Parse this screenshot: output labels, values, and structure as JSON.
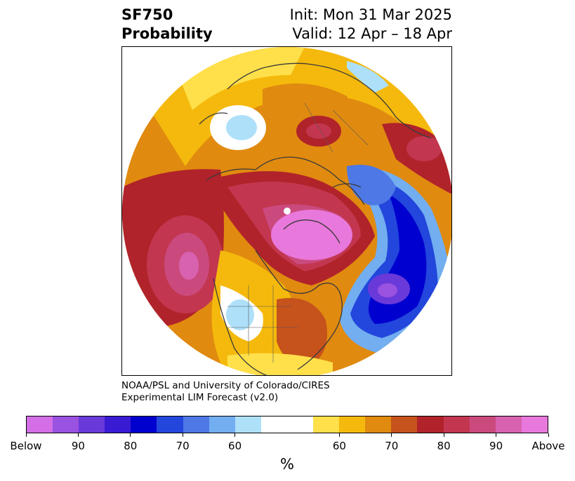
{
  "header": {
    "title_line1": "SF750",
    "title_line2": "Probability",
    "init": "Init: Mon 31 Mar 2025",
    "valid": "Valid: 12 Apr – 18 Apr"
  },
  "credit": {
    "line1": "NOAA/PSL and University of Colorado/CIRES",
    "line2": "Experimental LIM Forecast (v2.0)"
  },
  "colorbar": {
    "unit": "%",
    "ticks": [
      "Below",
      "90",
      "80",
      "70",
      "60",
      "60",
      "70",
      "80",
      "90",
      "Above"
    ],
    "below_colors": [
      "#d46ee6",
      "#9a52e0",
      "#6a39d9",
      "#3a1bd4",
      "#0000cf",
      "#2346dc",
      "#4d78e6",
      "#72aef0",
      "#aee0fa"
    ],
    "neutral_color": "#ffffff",
    "above_colors": [
      "#ffe04a",
      "#f4b90c",
      "#e08a10",
      "#c6521c",
      "#b0232a",
      "#c23650",
      "#cb4a7e",
      "#d862b0",
      "#e878dc"
    ]
  }
}
